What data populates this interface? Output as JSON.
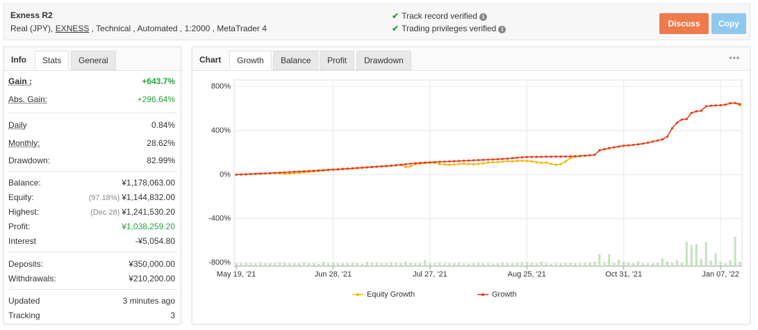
{
  "header": {
    "title": "Exness R2",
    "details": [
      "Real (JPY),",
      "EXNESS",
      ", Technical , Automated , 1:2000 , MetaTrader 4"
    ],
    "verified": [
      "Track record verified",
      "Trading privileges verified"
    ],
    "buttons": [
      "Discuss",
      "Copy"
    ]
  },
  "stats_panel": {
    "tabs": [
      "Info",
      "Stats",
      "General"
    ],
    "rows": [
      {
        "label": "Gain :",
        "value": "+643.7%"
      },
      {
        "label": "Abs. Gain:",
        "value": "+296.64%"
      },
      {
        "label": "Daily",
        "value": "0.84%"
      },
      {
        "label": "Monthly:",
        "value": "28.62%"
      },
      {
        "label": "Drawdown:",
        "value": "82.99%"
      },
      {
        "label": "Balance:",
        "value": "¥1,178,063.00"
      },
      {
        "label": "Equity:",
        "note": "(97.18%)",
        "value": "¥1,144,832.00"
      },
      {
        "label": "Highest:",
        "note": "(Dec 28)",
        "value": "¥1,241,530.20"
      },
      {
        "label": "Profit:",
        "value": "¥1,038,259.20"
      },
      {
        "label": "Interest",
        "value": "-¥5,054.80"
      },
      {
        "label": "Deposits:",
        "value": "¥350,000.00"
      },
      {
        "label": "Withdrawals:",
        "value": "¥210,200.00"
      },
      {
        "label": "Updated",
        "value": "3 minutes ago"
      },
      {
        "label": "Tracking",
        "value": "3"
      }
    ]
  },
  "chart_panel": {
    "tabs": [
      "Chart",
      "Growth",
      "Balance",
      "Profit",
      "Drawdown"
    ]
  },
  "chart_data": {
    "type": "line",
    "categories": [
      "May 19, '21",
      null,
      null,
      null,
      null,
      null,
      null,
      null,
      null,
      null,
      null,
      null,
      null,
      null,
      null,
      null,
      null,
      null,
      null,
      null,
      "Jun 28, '21",
      null,
      null,
      null,
      null,
      null,
      null,
      null,
      null,
      null,
      null,
      null,
      null,
      null,
      null,
      null,
      null,
      null,
      null,
      null,
      "Jul 27, '21",
      null,
      null,
      null,
      null,
      null,
      null,
      null,
      null,
      null,
      null,
      null,
      null,
      null,
      null,
      null,
      null,
      null,
      null,
      null,
      "Aug 25, '21",
      null,
      null,
      null,
      null,
      null,
      null,
      null,
      null,
      null,
      null,
      null,
      null,
      null,
      null,
      null,
      null,
      null,
      null,
      null,
      "Oct 31, '21",
      null,
      null,
      null,
      null,
      null,
      null,
      null,
      null,
      null,
      null,
      null,
      null,
      null,
      null,
      null,
      null,
      null,
      null,
      null,
      "Jan 07, '22",
      null,
      null,
      null,
      null
    ],
    "series": [
      {
        "name": "Equity Growth",
        "color": "#f5b400",
        "values": [
          0,
          1,
          3,
          5,
          6,
          8,
          10,
          11,
          13,
          12,
          8,
          10,
          14,
          16,
          20,
          24,
          28,
          32,
          36,
          40,
          44,
          46,
          49,
          52,
          55,
          58,
          61,
          64,
          67,
          70,
          73,
          76,
          80,
          84,
          88,
          70,
          74,
          95,
          100,
          104,
          106,
          108,
          95,
          92,
          90,
          92,
          96,
          100,
          96,
          94,
          98,
          102,
          110,
          112,
          114,
          118,
          122,
          120,
          124,
          126,
          124,
          120,
          112,
          108,
          110,
          98,
          90,
          96,
          120,
          150,
          162,
          168,
          172,
          175,
          180,
          220,
          230,
          240,
          248,
          255,
          262,
          266,
          270,
          275,
          282,
          290,
          300,
          310,
          320,
          345,
          420,
          470,
          500,
          505,
          560,
          575,
          580,
          620,
          625,
          628,
          630,
          635,
          648,
          650,
          628
        ]
      },
      {
        "name": "Growth",
        "color": "#e8391e",
        "values": [
          0,
          2,
          4,
          6,
          8,
          10,
          12,
          14,
          16,
          18,
          21,
          23,
          26,
          28,
          31,
          33,
          36,
          38,
          41,
          44,
          47,
          49,
          52,
          55,
          58,
          61,
          64,
          67,
          70,
          73,
          76,
          79,
          82,
          86,
          90,
          95,
          99,
          103,
          107,
          110,
          112,
          114,
          116,
          118,
          120,
          122,
          124,
          126,
          128,
          130,
          132,
          134,
          136,
          138,
          140,
          143,
          146,
          150,
          154,
          157,
          160,
          161,
          162,
          162,
          163,
          163,
          164,
          164,
          165,
          166,
          168,
          170,
          172,
          175,
          180,
          220,
          230,
          240,
          248,
          255,
          262,
          266,
          270,
          275,
          282,
          290,
          300,
          310,
          320,
          345,
          420,
          470,
          500,
          505,
          560,
          575,
          580,
          620,
          625,
          628,
          630,
          635,
          648,
          650,
          640
        ]
      }
    ],
    "bars": {
      "color": "#c3e2bb",
      "values": [
        -805,
        -805,
        -800,
        -805,
        -805,
        -800,
        -805,
        -805,
        -805,
        -795,
        -800,
        -805,
        -805,
        -805,
        -800,
        -805,
        -805,
        -810,
        -790,
        -805,
        -795,
        -805,
        -805,
        -805,
        -800,
        -805,
        -810,
        -790,
        -800,
        -795,
        -805,
        -800,
        -795,
        -800,
        -805,
        -790,
        -800,
        -805,
        -805,
        -775,
        -805,
        -805,
        -800,
        -805,
        -805,
        -805,
        -800,
        -805,
        -810,
        -805,
        -800,
        -805,
        -805,
        -810,
        -805,
        -800,
        -805,
        -805,
        -805,
        -795,
        -790,
        -800,
        -805,
        -790,
        -805,
        -810,
        -805,
        -805,
        -805,
        -800,
        -805,
        -805,
        -800,
        -795,
        -790,
        -720,
        -795,
        -720,
        -800,
        -770,
        -790,
        -800,
        -805,
        -790,
        -805,
        -805,
        -805,
        -800,
        -760,
        -790,
        -800,
        -775,
        -800,
        -610,
        -640,
        -630,
        -765,
        -610,
        -780,
        -715,
        -790,
        -805,
        -775,
        -565,
        -790
      ]
    },
    "ylim": [
      -830,
      860
    ],
    "yticks": [
      {
        "value": 800,
        "label": "800%"
      },
      {
        "value": 400,
        "label": "400%"
      },
      {
        "value": 0,
        "label": "0%"
      },
      {
        "value": -400,
        "label": "-400%"
      },
      {
        "value": -800,
        "label": "-800%"
      }
    ],
    "grid": true
  }
}
